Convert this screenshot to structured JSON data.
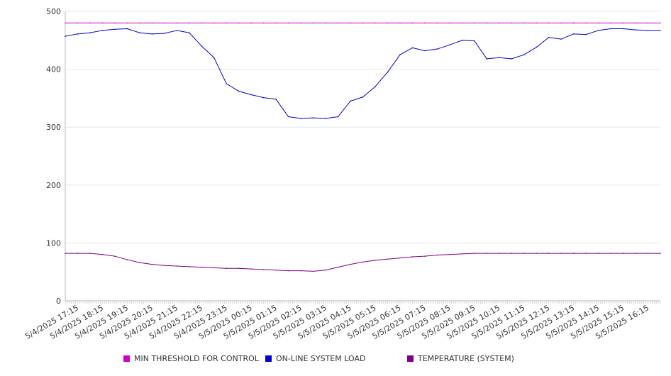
{
  "chart_data": {
    "type": "line",
    "title": "",
    "xlabel": "",
    "ylabel": "",
    "ylim": [
      0,
      500
    ],
    "yticks": [
      0,
      100,
      200,
      300,
      400,
      500
    ],
    "grid": "horizontal",
    "legend_position": "bottom",
    "x_tick_labels": [
      "5/4/2025 17:15",
      "5/4/2025 18:15",
      "5/4/2025 19:15",
      "5/4/2025 20:15",
      "5/4/2025 21:15",
      "5/4/2025 22:15",
      "5/4/2025 23:15",
      "5/5/2025 00:15",
      "5/5/2025 01:15",
      "5/5/2025 02:15",
      "5/5/2025 03:15",
      "5/5/2025 04:15",
      "5/5/2025 05:15",
      "5/5/2025 06:15",
      "5/5/2025 07:15",
      "5/5/2025 08:15",
      "5/5/2025 09:15",
      "5/5/2025 10:15",
      "5/5/2025 11:15",
      "5/5/2025 12:15",
      "5/5/2025 13:15",
      "5/5/2025 14:15",
      "5/5/2025 15:15",
      "5/5/2025 16:15"
    ],
    "x": [
      "5/4/2025 16:45",
      "5/4/2025 17:15",
      "5/4/2025 17:45",
      "5/4/2025 18:15",
      "5/4/2025 18:45",
      "5/4/2025 19:15",
      "5/4/2025 19:45",
      "5/4/2025 20:15",
      "5/4/2025 20:45",
      "5/4/2025 21:15",
      "5/4/2025 21:45",
      "5/4/2025 22:15",
      "5/4/2025 22:45",
      "5/4/2025 23:15",
      "5/4/2025 23:45",
      "5/5/2025 00:15",
      "5/5/2025 00:45",
      "5/5/2025 01:15",
      "5/5/2025 01:45",
      "5/5/2025 02:15",
      "5/5/2025 02:45",
      "5/5/2025 03:15",
      "5/5/2025 03:45",
      "5/5/2025 04:15",
      "5/5/2025 04:45",
      "5/5/2025 05:15",
      "5/5/2025 05:45",
      "5/5/2025 06:15",
      "5/5/2025 06:45",
      "5/5/2025 07:15",
      "5/5/2025 07:45",
      "5/5/2025 08:15",
      "5/5/2025 08:45",
      "5/5/2025 09:15",
      "5/5/2025 09:45",
      "5/5/2025 10:15",
      "5/5/2025 10:45",
      "5/5/2025 11:15",
      "5/5/2025 11:45",
      "5/5/2025 12:15",
      "5/5/2025 12:45",
      "5/5/2025 13:15",
      "5/5/2025 13:45",
      "5/5/2025 14:15",
      "5/5/2025 14:45",
      "5/5/2025 15:15",
      "5/5/2025 15:45",
      "5/5/2025 16:15",
      "5/5/2025 16:45"
    ],
    "series": [
      {
        "name": "MIN THRESHOLD FOR CONTROL",
        "color": "#cc00cc",
        "values": [
          480,
          480,
          480,
          480,
          480,
          480,
          480,
          480,
          480,
          480,
          480,
          480,
          480,
          480,
          480,
          480,
          480,
          480,
          480,
          480,
          480,
          480,
          480,
          480,
          480,
          480,
          480,
          480,
          480,
          480,
          480,
          480,
          480,
          480,
          480,
          480,
          480,
          480,
          480,
          480,
          480,
          480,
          480,
          480,
          480,
          480,
          480,
          480,
          480
        ]
      },
      {
        "name": "ON-LINE SYSTEM LOAD",
        "color": "#0000cc",
        "values": [
          457,
          461,
          463,
          467,
          469,
          470,
          463,
          461,
          462,
          467,
          463,
          440,
          420,
          375,
          362,
          356,
          351,
          348,
          318,
          315,
          316,
          315,
          318,
          345,
          352,
          370,
          395,
          425,
          437,
          432,
          435,
          442,
          450,
          449,
          418,
          420,
          418,
          425,
          438,
          455,
          452,
          461,
          460,
          467,
          470,
          470,
          468,
          467,
          467
        ]
      },
      {
        "name": "TEMPERATURE (SYSTEM)",
        "color": "#800080",
        "values": [
          82,
          82,
          82,
          80,
          77,
          71,
          66,
          63,
          61,
          60,
          59,
          58,
          57,
          56,
          56,
          55,
          54,
          53,
          52,
          52,
          51,
          53,
          58,
          63,
          67,
          70,
          72,
          74,
          76,
          77,
          79,
          80,
          81,
          82,
          82,
          82,
          82,
          82,
          82,
          82,
          82,
          82,
          82,
          82,
          82,
          82,
          82,
          82,
          82
        ]
      }
    ]
  }
}
